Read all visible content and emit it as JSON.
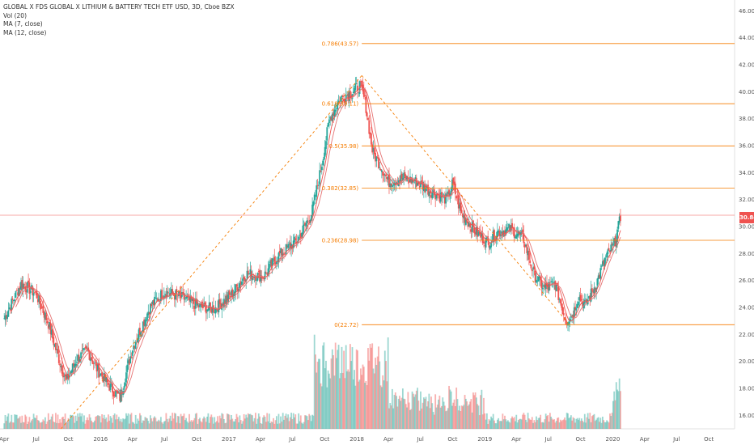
{
  "header": {
    "title": "GLOBAL X FDS GLOBAL X LITHIUM & BATTERY TECH ETF USD, 3D, Cboe BZX",
    "indicators": [
      "Vol (20)",
      "MA (7, close)",
      "MA (12, close)"
    ]
  },
  "last_price": "30.84",
  "colors": {
    "up": "#26a69a",
    "down": "#ef5350",
    "fib": "#f57c00",
    "ma_fast": "#ef5350",
    "ma_slow": "#e57373",
    "price_line": "#ef5350"
  },
  "chart_data": {
    "type": "candlestick",
    "series_note": "approximate 3-day candles read from chart",
    "x_ticks": [
      "Apr",
      "Jul",
      "Oct",
      "2016",
      "Apr",
      "Jul",
      "Oct",
      "2017",
      "Apr",
      "Jul",
      "Oct",
      "2018",
      "Apr",
      "Jul",
      "Oct",
      "2019",
      "Apr",
      "Jul",
      "Oct",
      "2020",
      "Apr",
      "Jul",
      "Oct"
    ],
    "y_ticks": [
      16,
      18,
      20,
      22,
      24,
      26,
      28,
      30,
      32,
      34,
      36,
      38,
      40,
      42,
      44,
      46
    ],
    "ylim": [
      15.0,
      46.8
    ],
    "price_path": [
      [
        "2015-04-01",
        23.2
      ],
      [
        "2015-05-20",
        25.8
      ],
      [
        "2015-07-01",
        25.0
      ],
      [
        "2015-08-05",
        22.8
      ],
      [
        "2015-08-25",
        21.0
      ],
      [
        "2015-09-25",
        18.5
      ],
      [
        "2015-10-25",
        20.2
      ],
      [
        "2015-11-25",
        20.8
      ],
      [
        "2015-12-20",
        19.5
      ],
      [
        "2016-01-25",
        18.2
      ],
      [
        "2016-02-25",
        17.3
      ],
      [
        "2016-04-01",
        21.0
      ],
      [
        "2016-05-20",
        24.0
      ],
      [
        "2016-07-01",
        25.2
      ],
      [
        "2016-09-01",
        24.6
      ],
      [
        "2016-10-15",
        24.0
      ],
      [
        "2016-11-20",
        23.9
      ],
      [
        "2017-01-10",
        25.0
      ],
      [
        "2017-02-20",
        26.5
      ],
      [
        "2017-04-10",
        26.3
      ],
      [
        "2017-05-20",
        27.8
      ],
      [
        "2017-07-15",
        29.0
      ],
      [
        "2017-08-25",
        31.0
      ],
      [
        "2017-09-20",
        34.2
      ],
      [
        "2017-10-15",
        38.0
      ],
      [
        "2017-11-15",
        39.5
      ],
      [
        "2017-12-20",
        40.0
      ],
      [
        "2018-01-10",
        40.5
      ],
      [
        "2018-01-25",
        39.2
      ],
      [
        "2018-02-15",
        35.5
      ],
      [
        "2018-03-10",
        34.5
      ],
      [
        "2018-04-01",
        33.3
      ],
      [
        "2018-05-15",
        33.6
      ],
      [
        "2018-06-20",
        33.3
      ],
      [
        "2018-08-01",
        32.6
      ],
      [
        "2018-09-15",
        32.0
      ],
      [
        "2018-10-01",
        33.2
      ],
      [
        "2018-10-25",
        31.0
      ],
      [
        "2018-12-10",
        29.5
      ],
      [
        "2019-01-10",
        28.8
      ],
      [
        "2019-02-05",
        29.6
      ],
      [
        "2019-03-15",
        29.8
      ],
      [
        "2019-04-20",
        29.2
      ],
      [
        "2019-05-20",
        26.5
      ],
      [
        "2019-06-20",
        25.4
      ],
      [
        "2019-07-20",
        25.8
      ],
      [
        "2019-08-20",
        23.0
      ],
      [
        "2019-09-10",
        23.6
      ],
      [
        "2019-09-25",
        24.8
      ],
      [
        "2019-10-15",
        24.2
      ],
      [
        "2019-11-15",
        25.8
      ],
      [
        "2019-12-10",
        27.6
      ],
      [
        "2020-01-05",
        28.7
      ],
      [
        "2020-01-25",
        30.84
      ]
    ],
    "fib_levels": [
      {
        "label": "0(22.72)",
        "value": 22.72
      },
      {
        "label": "0.236(28.98)",
        "value": 28.98
      },
      {
        "label": "0.382(32.85)",
        "value": 32.85
      },
      {
        "label": "0.5(35.98)",
        "value": 35.98
      },
      {
        "label": "0.618(39.11)",
        "value": 39.11
      },
      {
        "label": "0.786(43.57)",
        "value": 43.57
      }
    ],
    "trend_lines": [
      {
        "from": [
          "2015-09-10",
          15.0
        ],
        "to": [
          "2018-01-15",
          41.2
        ]
      },
      {
        "from": [
          "2018-01-15",
          41.2
        ],
        "to": [
          "2019-08-30",
          22.72
        ]
      }
    ],
    "last_price_line": 30.84,
    "volume_note": "volume histogram along the bottom (spike around Oct 2017 and Jan 2020)"
  }
}
